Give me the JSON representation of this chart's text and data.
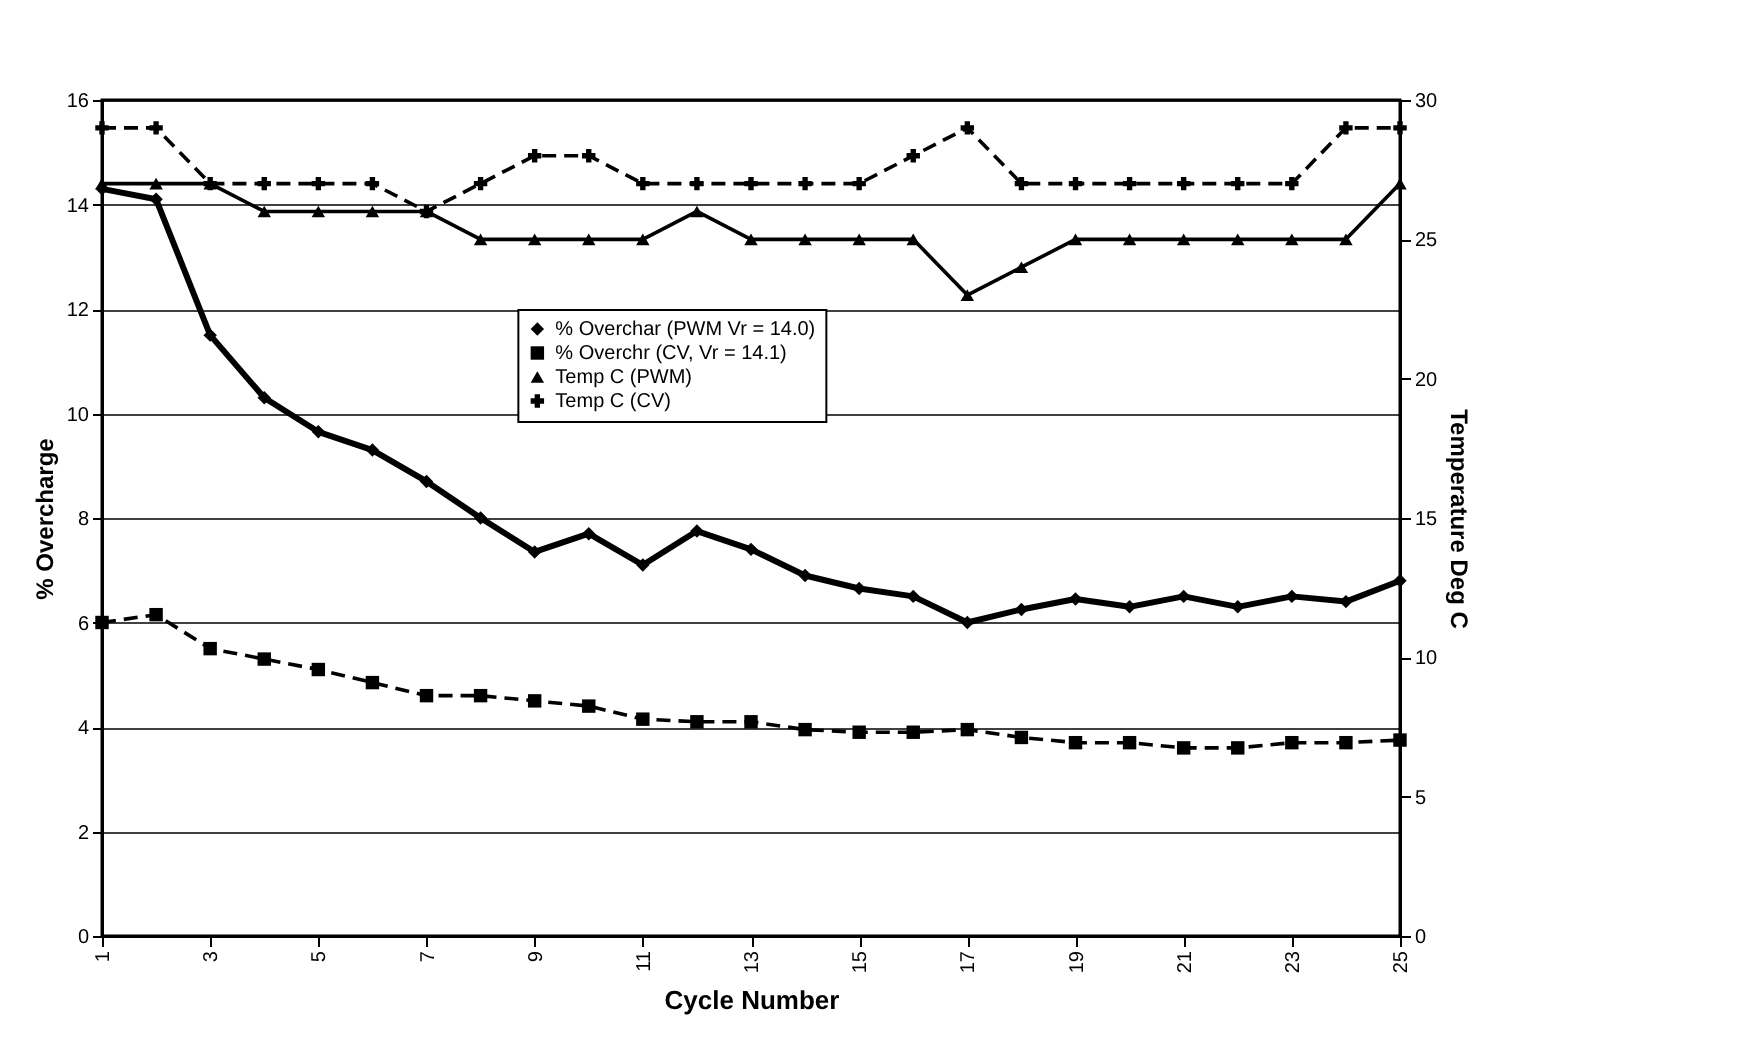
{
  "chart_data": {
    "type": "line",
    "xlabel": "Cycle Number",
    "ylabel": "% Overcharge",
    "y2label": "Temperature Deg C",
    "x": [
      1,
      2,
      3,
      4,
      5,
      6,
      7,
      8,
      9,
      10,
      11,
      12,
      13,
      14,
      15,
      16,
      17,
      18,
      19,
      20,
      21,
      22,
      23,
      24,
      25
    ],
    "series": [
      {
        "name": "% Overchar (PWM Vr = 14.0)",
        "color": "#000000",
        "marker": "diamond",
        "line_style": "solid",
        "values": [
          14.3,
          14.1,
          11.5,
          10.3,
          9.65,
          9.3,
          8.7,
          8.0,
          7.35,
          7.7,
          7.1,
          7.75,
          7.4,
          6.9,
          6.65,
          6.5,
          6.0,
          6.25,
          6.45,
          6.3,
          6.5,
          6.3,
          6.5,
          6.4,
          6.8
        ]
      },
      {
        "name": "% Overchr (CV, Vr = 14.1)",
        "color": "#000000",
        "marker": "square",
        "line_style": "dashed",
        "values": [
          6.0,
          6.15,
          5.5,
          5.3,
          5.1,
          4.85,
          4.6,
          4.6,
          4.5,
          4.4,
          4.15,
          4.1,
          4.1,
          3.95,
          3.9,
          3.9,
          3.95,
          3.8,
          3.7,
          3.7,
          3.6,
          3.6,
          3.7,
          3.7,
          3.75
        ]
      },
      {
        "name": "Temp C (PWM)",
        "color": "#000000",
        "marker": "triangle",
        "line_style": "solid",
        "axis": "y2",
        "values": [
          27,
          27,
          27,
          26,
          26,
          26,
          26,
          25,
          25,
          25,
          25,
          26,
          25,
          25,
          25,
          25,
          23,
          24,
          25,
          25,
          25,
          25,
          25,
          25,
          27
        ]
      },
      {
        "name": "Temp C (CV)",
        "color": "#000000",
        "marker": "cross",
        "line_style": "dashed",
        "axis": "y2",
        "values": [
          29,
          29,
          27,
          27,
          27,
          27,
          26,
          27,
          28,
          28,
          27,
          27,
          27,
          27,
          27,
          28,
          29,
          27,
          27,
          27,
          27,
          27,
          27,
          29,
          29
        ]
      }
    ],
    "xlim": [
      1,
      25
    ],
    "xticks": [
      1,
      3,
      5,
      7,
      9,
      11,
      13,
      15,
      17,
      19,
      21,
      23,
      25
    ],
    "ylim": [
      0,
      16
    ],
    "yticks": [
      0,
      2,
      4,
      6,
      8,
      10,
      12,
      14,
      16
    ],
    "y2lim": [
      0,
      30
    ],
    "y2ticks": [
      0,
      5,
      10,
      15,
      20,
      25,
      30
    ],
    "grid": "y",
    "legend": "center"
  }
}
